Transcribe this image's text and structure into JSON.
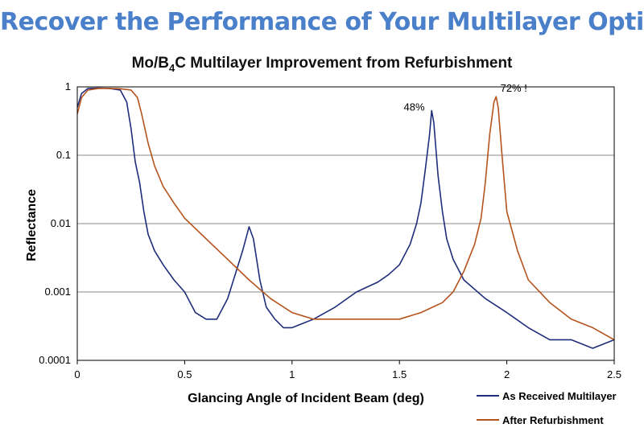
{
  "header": {
    "banner": "Recover the Performance of Your Multilayer Optics",
    "title_prefix": "Mo/B",
    "title_sub": "4",
    "title_suffix": "C Multilayer Improvement from Refurbishment"
  },
  "chart_data": {
    "type": "line",
    "xlabel": "Glancing Angle of Incident Beam (deg)",
    "ylabel": "Reflectance",
    "xlim": [
      0,
      2.5
    ],
    "ylim": [
      0.0001,
      1
    ],
    "yscale": "log",
    "grid": true,
    "legend_position": "bottom-right",
    "x_ticks": [
      "0",
      "0.5",
      "1",
      "1.5",
      "2",
      "2.5"
    ],
    "y_ticks": [
      "1",
      "0.1",
      "0.01",
      "0.001",
      "0.0001"
    ],
    "series": [
      {
        "name": "As Received Multilayer",
        "color": "#1f2d7a",
        "x": [
          0,
          0.02,
          0.05,
          0.1,
          0.15,
          0.2,
          0.23,
          0.25,
          0.27,
          0.29,
          0.31,
          0.33,
          0.36,
          0.4,
          0.45,
          0.5,
          0.55,
          0.6,
          0.65,
          0.7,
          0.74,
          0.77,
          0.8,
          0.82,
          0.85,
          0.88,
          0.92,
          0.96,
          1.0,
          1.1,
          1.2,
          1.3,
          1.4,
          1.45,
          1.5,
          1.55,
          1.58,
          1.6,
          1.62,
          1.64,
          1.65,
          1.66,
          1.68,
          1.7,
          1.72,
          1.75,
          1.8,
          1.9,
          2.0,
          2.1,
          2.2,
          2.3,
          2.4,
          2.5
        ],
        "y": [
          0.5,
          0.8,
          0.95,
          0.96,
          0.95,
          0.9,
          0.6,
          0.25,
          0.08,
          0.04,
          0.015,
          0.007,
          0.004,
          0.0025,
          0.0015,
          0.001,
          0.0005,
          0.0004,
          0.0004,
          0.0008,
          0.002,
          0.004,
          0.009,
          0.006,
          0.0015,
          0.0006,
          0.0004,
          0.0003,
          0.0003,
          0.0004,
          0.0006,
          0.001,
          0.0014,
          0.0018,
          0.0025,
          0.005,
          0.01,
          0.02,
          0.06,
          0.2,
          0.45,
          0.3,
          0.05,
          0.015,
          0.006,
          0.003,
          0.0015,
          0.0008,
          0.0005,
          0.0003,
          0.0002,
          0.0002,
          0.00015,
          0.0002
        ]
      },
      {
        "name": "After Refurbishment",
        "color": "#b5531c",
        "x": [
          0,
          0.02,
          0.05,
          0.1,
          0.15,
          0.2,
          0.25,
          0.28,
          0.3,
          0.33,
          0.36,
          0.4,
          0.45,
          0.5,
          0.6,
          0.7,
          0.8,
          0.9,
          1.0,
          1.1,
          1.2,
          1.3,
          1.4,
          1.5,
          1.6,
          1.7,
          1.75,
          1.8,
          1.85,
          1.88,
          1.9,
          1.92,
          1.94,
          1.95,
          1.96,
          1.98,
          2.0,
          2.05,
          2.1,
          2.2,
          2.3,
          2.4,
          2.5
        ],
        "y": [
          0.4,
          0.7,
          0.9,
          0.95,
          0.95,
          0.94,
          0.9,
          0.7,
          0.4,
          0.15,
          0.07,
          0.035,
          0.02,
          0.012,
          0.006,
          0.003,
          0.0015,
          0.0008,
          0.0005,
          0.0004,
          0.0004,
          0.0004,
          0.0004,
          0.0004,
          0.0005,
          0.0007,
          0.001,
          0.002,
          0.005,
          0.012,
          0.04,
          0.2,
          0.6,
          0.72,
          0.5,
          0.08,
          0.015,
          0.004,
          0.0015,
          0.0007,
          0.0004,
          0.0003,
          0.0002
        ]
      }
    ],
    "annotations": [
      {
        "text": "48%",
        "x": 1.52,
        "y": 0.45
      },
      {
        "text": "72% !",
        "x": 1.97,
        "y": 0.85
      }
    ]
  }
}
